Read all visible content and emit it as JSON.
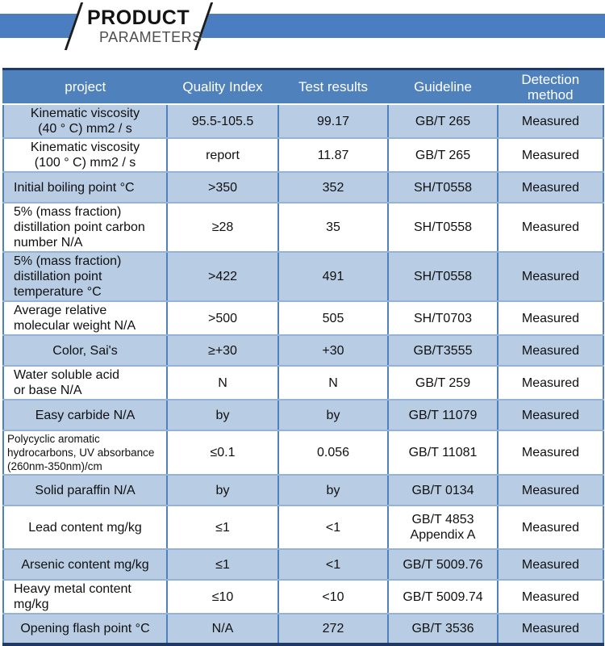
{
  "banner": {
    "title": "PRODUCT",
    "subtitle": "PARAMETERS"
  },
  "colors": {
    "band_blue": "#4a7ec0",
    "header_blue": "#4f81bd",
    "row_alt_blue": "#b8cce4",
    "navy_border": "#1f3864",
    "grid_light": "#95b3d7"
  },
  "table": {
    "headers": [
      "project",
      "Quality Index",
      "Test results",
      "Guideline",
      "Detection\nmethod"
    ],
    "rows": [
      {
        "project": "Kinematic viscosity\n(40 ° C) mm2 / s",
        "quality_index": "95.5-105.5",
        "test_results": "99.17",
        "guideline": "GB/T 265",
        "detection": "Measured",
        "align": "center"
      },
      {
        "project": "Kinematic viscosity\n(100 ° C) mm2 / s",
        "quality_index": "report",
        "test_results": "11.87",
        "guideline": "GB/T 265",
        "detection": "Measured",
        "align": "center"
      },
      {
        "project": "Initial boiling point °C",
        "quality_index": ">350",
        "test_results": "352",
        "guideline": "SH/T0558",
        "detection": "Measured",
        "align": "left"
      },
      {
        "project": "5% (mass fraction)\ndistillation point carbon\nnumber N/A",
        "quality_index": "≥28",
        "test_results": "35",
        "guideline": "SH/T0558",
        "detection": "Measured",
        "align": "left"
      },
      {
        "project": "5% (mass fraction)\ndistillation point\ntemperature °C",
        "quality_index": ">422",
        "test_results": "491",
        "guideline": "SH/T0558",
        "detection": "Measured",
        "align": "left"
      },
      {
        "project": "Average relative\nmolecular weight N/A",
        "quality_index": ">500",
        "test_results": "505",
        "guideline": "SH/T0703",
        "detection": "Measured",
        "align": "left"
      },
      {
        "project": "Color, Sai's",
        "quality_index": "≥+30",
        "test_results": "+30",
        "guideline": "GB/T3555",
        "detection": "Measured",
        "align": "center"
      },
      {
        "project": "Water soluble acid\nor base N/A",
        "quality_index": "N",
        "test_results": "N",
        "guideline": "GB/T 259",
        "detection": "Measured",
        "align": "left"
      },
      {
        "project": "Easy carbide N/A",
        "quality_index": "by",
        "test_results": "by",
        "guideline": "GB/T 11079",
        "detection": "Measured",
        "align": "center"
      },
      {
        "project": "Polycyclic aromatic\nhydrocarbons, UV absorbance\n(260nm-350nm)/cm",
        "quality_index": "≤0.1",
        "test_results": "0.056",
        "guideline": "GB/T 11081",
        "detection": "Measured",
        "align": "left",
        "small": true
      },
      {
        "project": "Solid paraffin N/A",
        "quality_index": "by",
        "test_results": "by",
        "guideline": "GB/T 0134",
        "detection": "Measured",
        "align": "center"
      },
      {
        "project": "Lead content mg/kg",
        "quality_index": "≤1",
        "test_results": "<1",
        "guideline": "GB/T 4853\nAppendix A",
        "detection": "Measured",
        "align": "center"
      },
      {
        "project": "Arsenic content mg/kg",
        "quality_index": "≤1",
        "test_results": "<1",
        "guideline": "GB/T 5009.76",
        "detection": "Measured",
        "align": "center"
      },
      {
        "project": "Heavy metal content\nmg/kg",
        "quality_index": "≤10",
        "test_results": "<10",
        "guideline": "GB/T 5009.74",
        "detection": "Measured",
        "align": "left"
      },
      {
        "project": "Opening flash point °C",
        "quality_index": "N/A",
        "test_results": "272",
        "guideline": "GB/T 3536",
        "detection": "Measured",
        "align": "center"
      }
    ]
  }
}
